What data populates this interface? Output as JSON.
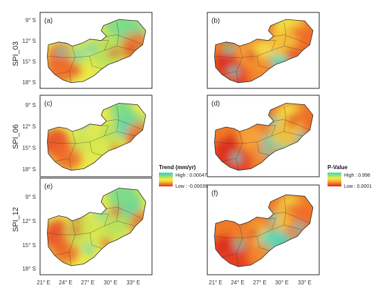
{
  "row_labels": [
    "SPI_03",
    "SPI_06",
    "SPI_12"
  ],
  "panels": [
    {
      "label": "(a)",
      "type": "trend"
    },
    {
      "label": "(b)",
      "type": "pvalue"
    },
    {
      "label": "(c)",
      "type": "trend"
    },
    {
      "label": "(d)",
      "type": "pvalue"
    },
    {
      "label": "(e)",
      "type": "trend"
    },
    {
      "label": "(f)",
      "type": "pvalue"
    }
  ],
  "lat_ticks": [
    "9° S",
    "12° S",
    "15° S",
    "18° S"
  ],
  "lon_ticks": [
    "21° E",
    "24° E",
    "27° E",
    "30° E",
    "33° E"
  ],
  "trend_legend": {
    "title": "Trend (mm/yr)",
    "high": "High : 0.00047",
    "low": "Low : -0.00039",
    "colors": [
      "#d6301e",
      "#f47a25",
      "#f6c43a",
      "#f3ee4b",
      "#b4e45a",
      "#64d992",
      "#3fd3c8"
    ]
  },
  "pvalue_legend": {
    "title": "P-Value",
    "high": "High : 0.998",
    "low": "Low : 0.0001",
    "colors": [
      "#3fd3c8",
      "#8ee27a",
      "#f1ec47",
      "#f6b73a",
      "#f06f27",
      "#d9281c"
    ]
  }
}
